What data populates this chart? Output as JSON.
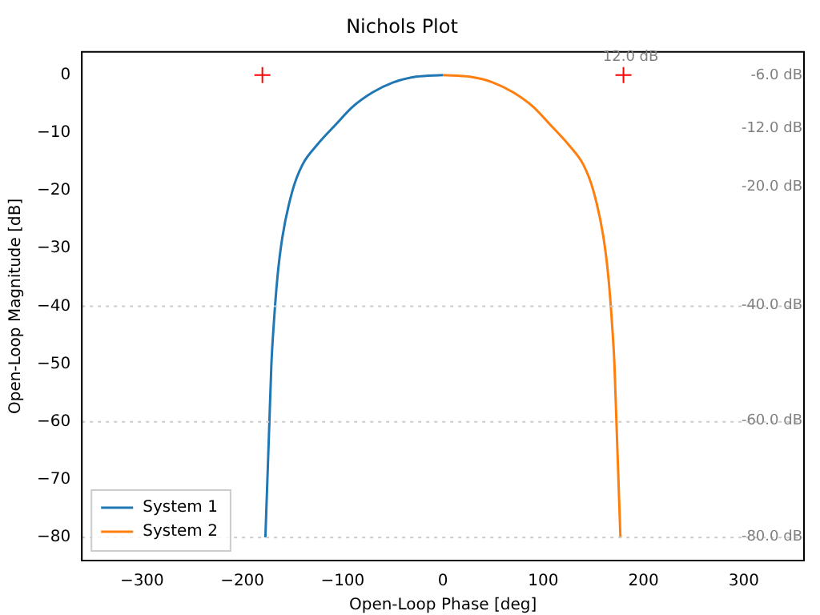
{
  "chart_data": {
    "type": "line",
    "title": "Nichols Plot",
    "xlabel": "Open-Loop Phase [deg]",
    "ylabel": "Open-Loop Magnitude [dB]",
    "xlim": [
      -360,
      360
    ],
    "xticks": [
      -300,
      -200,
      -100,
      0,
      100,
      200,
      300
    ],
    "ylim": [
      -84,
      4
    ],
    "yticks": [
      -80,
      -70,
      -60,
      -50,
      -40,
      -30,
      -20,
      -10,
      0
    ],
    "series": [
      {
        "name": "System 1",
        "color": "#1f77b4",
        "x": [
          -177,
          -175,
          -173,
          -171,
          -169,
          -165,
          -160,
          -150,
          -140,
          -125,
          -107,
          -90,
          -70,
          -50,
          -27,
          0
        ],
        "values": [
          -80,
          -70,
          -60,
          -50,
          -44,
          -35,
          -28,
          -20,
          -15.5,
          -12,
          -8.6,
          -5.5,
          -3,
          -1.3,
          -0.3,
          0
        ]
      },
      {
        "name": "System 2",
        "color": "#ff7f0e",
        "x": [
          0,
          27,
          50,
          70,
          90,
          107,
          125,
          140,
          150,
          160,
          165,
          169,
          171,
          173,
          175,
          177
        ],
        "values": [
          0,
          -0.3,
          -1.3,
          -3,
          -5.5,
          -8.6,
          -12,
          -15.5,
          -20,
          -28,
          -35,
          -44,
          -50,
          -60,
          -70,
          -80
        ]
      },
      {
        "type": "scatter",
        "color": "#ff0000",
        "marker": "cross",
        "x": [
          -180,
          180
        ],
        "values": [
          0,
          0
        ]
      }
    ],
    "ref_lines": [
      {
        "axis": "y",
        "value": -40,
        "label": "-40.0 dB",
        "color": "#cccccc",
        "line_style": "dotted"
      },
      {
        "axis": "y",
        "value": -60,
        "label": "-60.0 dB",
        "color": "#cccccc",
        "line_style": "dotted"
      },
      {
        "axis": "y",
        "value": -80,
        "label": "-80.0 dB",
        "color": "#cccccc",
        "line_style": "dotted"
      }
    ],
    "annotations": [
      "12.0 dB",
      "-6.0 dB",
      "-12.0 dB",
      "-20.0 dB"
    ],
    "legend": "bottom left"
  }
}
